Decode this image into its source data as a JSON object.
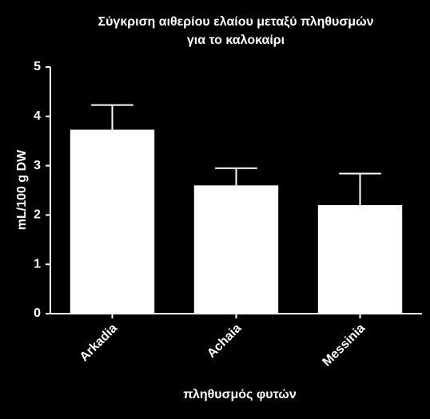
{
  "chart_data": {
    "type": "bar",
    "title": [
      "Σύγκριση αιθερίου ελαίου μεταξύ πληθυσμών",
      "για το καλοκαίρι"
    ],
    "x_label": "πληθυσμός φυτών",
    "y_label": "mL/100 g DW",
    "categories": [
      "Arkadia",
      "Achaia",
      "Messinia"
    ],
    "values": [
      3.73,
      2.6,
      2.2
    ],
    "errors": [
      0.5,
      0.35,
      0.64
    ],
    "color": "#ffffff",
    "ylim": [
      0,
      5
    ],
    "yticks": [
      0,
      1,
      2,
      3,
      4,
      5
    ],
    "grid": false
  }
}
